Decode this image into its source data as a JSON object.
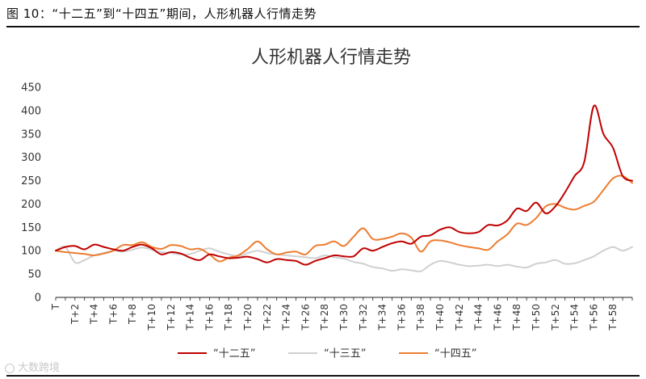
{
  "caption": "图 10：“十二五”到“十四五”期间，人形机器人行情走势",
  "watermark": "大数跨境",
  "colors": {
    "s12": "#c00000",
    "s13": "#d0d0d0",
    "s14": "#ed7d31",
    "axis": "#222222",
    "text": "#333333"
  },
  "chart_data": {
    "type": "line",
    "title": "人形机器人行情走势",
    "ylim": [
      0,
      450
    ],
    "yticks": [
      0,
      50,
      100,
      150,
      200,
      250,
      300,
      350,
      400,
      450
    ],
    "xticks": [
      "T",
      "T+2",
      "T+4",
      "T+6",
      "T+8",
      "T+10",
      "T+12",
      "T+14",
      "T+16",
      "T+18",
      "T+20",
      "T+22",
      "T+24",
      "T+26",
      "T+28",
      "T+30",
      "T+32",
      "T+34",
      "T+36",
      "T+38",
      "T+40",
      "T+42",
      "T+44",
      "T+46",
      "T+48",
      "T+50",
      "T+52",
      "T+54",
      "T+56",
      "T+58"
    ],
    "xrange": [
      0,
      60
    ],
    "legend_position": "bottom",
    "series": [
      {
        "name": "“十二五”",
        "color": "#c00000",
        "x": [
          0,
          1,
          2,
          3,
          4,
          5,
          6,
          7,
          8,
          9,
          10,
          11,
          12,
          13,
          14,
          15,
          16,
          17,
          18,
          19,
          20,
          21,
          22,
          23,
          24,
          25,
          26,
          27,
          28,
          29,
          30,
          31,
          32,
          33,
          34,
          35,
          36,
          37,
          38,
          39,
          40,
          41,
          42,
          43,
          44,
          45,
          46,
          47,
          48,
          49,
          50,
          51,
          52,
          53,
          54,
          55,
          56,
          57,
          58,
          59,
          60
        ],
        "values": [
          100,
          108,
          110,
          103,
          113,
          108,
          103,
          100,
          108,
          113,
          105,
          92,
          97,
          94,
          85,
          80,
          92,
          88,
          84,
          85,
          87,
          82,
          75,
          82,
          80,
          78,
          70,
          78,
          84,
          90,
          88,
          88,
          105,
          100,
          108,
          116,
          120,
          115,
          130,
          133,
          145,
          150,
          140,
          137,
          140,
          155,
          154,
          165,
          190,
          185,
          203,
          180,
          195,
          225,
          260,
          290,
          410,
          350,
          320,
          260,
          250
        ]
      },
      {
        "name": "“十三五”",
        "color": "#d0d0d0",
        "x": [
          0,
          1,
          2,
          3,
          4,
          5,
          6,
          7,
          8,
          9,
          10,
          11,
          12,
          13,
          14,
          15,
          16,
          17,
          18,
          19,
          20,
          21,
          22,
          23,
          24,
          25,
          26,
          27,
          28,
          29,
          30,
          31,
          32,
          33,
          34,
          35,
          36,
          37,
          38,
          39,
          40,
          41,
          42,
          43,
          44,
          45,
          46,
          47,
          48,
          49,
          50,
          51,
          52,
          53,
          54,
          55,
          56,
          57,
          58,
          59,
          60
        ],
        "values": [
          100,
          108,
          75,
          80,
          90,
          95,
          100,
          98,
          102,
          107,
          102,
          97,
          95,
          92,
          93,
          100,
          105,
          98,
          92,
          88,
          95,
          100,
          95,
          92,
          90,
          88,
          86,
          84,
          90,
          86,
          83,
          76,
          72,
          65,
          62,
          57,
          60,
          58,
          56,
          70,
          78,
          75,
          70,
          67,
          68,
          70,
          67,
          70,
          66,
          64,
          72,
          75,
          80,
          72,
          73,
          80,
          88,
          100,
          108,
          100,
          108
        ]
      },
      {
        "name": "“十四五”",
        "color": "#ed7d31",
        "x": [
          0,
          1,
          2,
          3,
          4,
          5,
          6,
          7,
          8,
          9,
          10,
          11,
          12,
          13,
          14,
          15,
          16,
          17,
          18,
          19,
          20,
          21,
          22,
          23,
          24,
          25,
          26,
          27,
          28,
          29,
          30,
          31,
          32,
          33,
          34,
          35,
          36,
          37,
          38,
          39,
          40,
          41,
          42,
          43,
          44,
          45,
          46,
          47,
          48,
          49,
          50,
          51,
          52,
          53,
          54,
          55,
          56,
          57,
          58,
          59,
          60
        ],
        "values": [
          100,
          97,
          95,
          93,
          90,
          94,
          100,
          112,
          112,
          118,
          108,
          104,
          112,
          110,
          103,
          104,
          92,
          77,
          85,
          90,
          104,
          120,
          103,
          92,
          96,
          98,
          92,
          110,
          113,
          120,
          110,
          130,
          148,
          125,
          125,
          130,
          137,
          128,
          98,
          120,
          122,
          118,
          112,
          108,
          105,
          102,
          120,
          135,
          158,
          155,
          170,
          195,
          200,
          192,
          188,
          196,
          205,
          230,
          255,
          260,
          245
        ]
      }
    ]
  }
}
